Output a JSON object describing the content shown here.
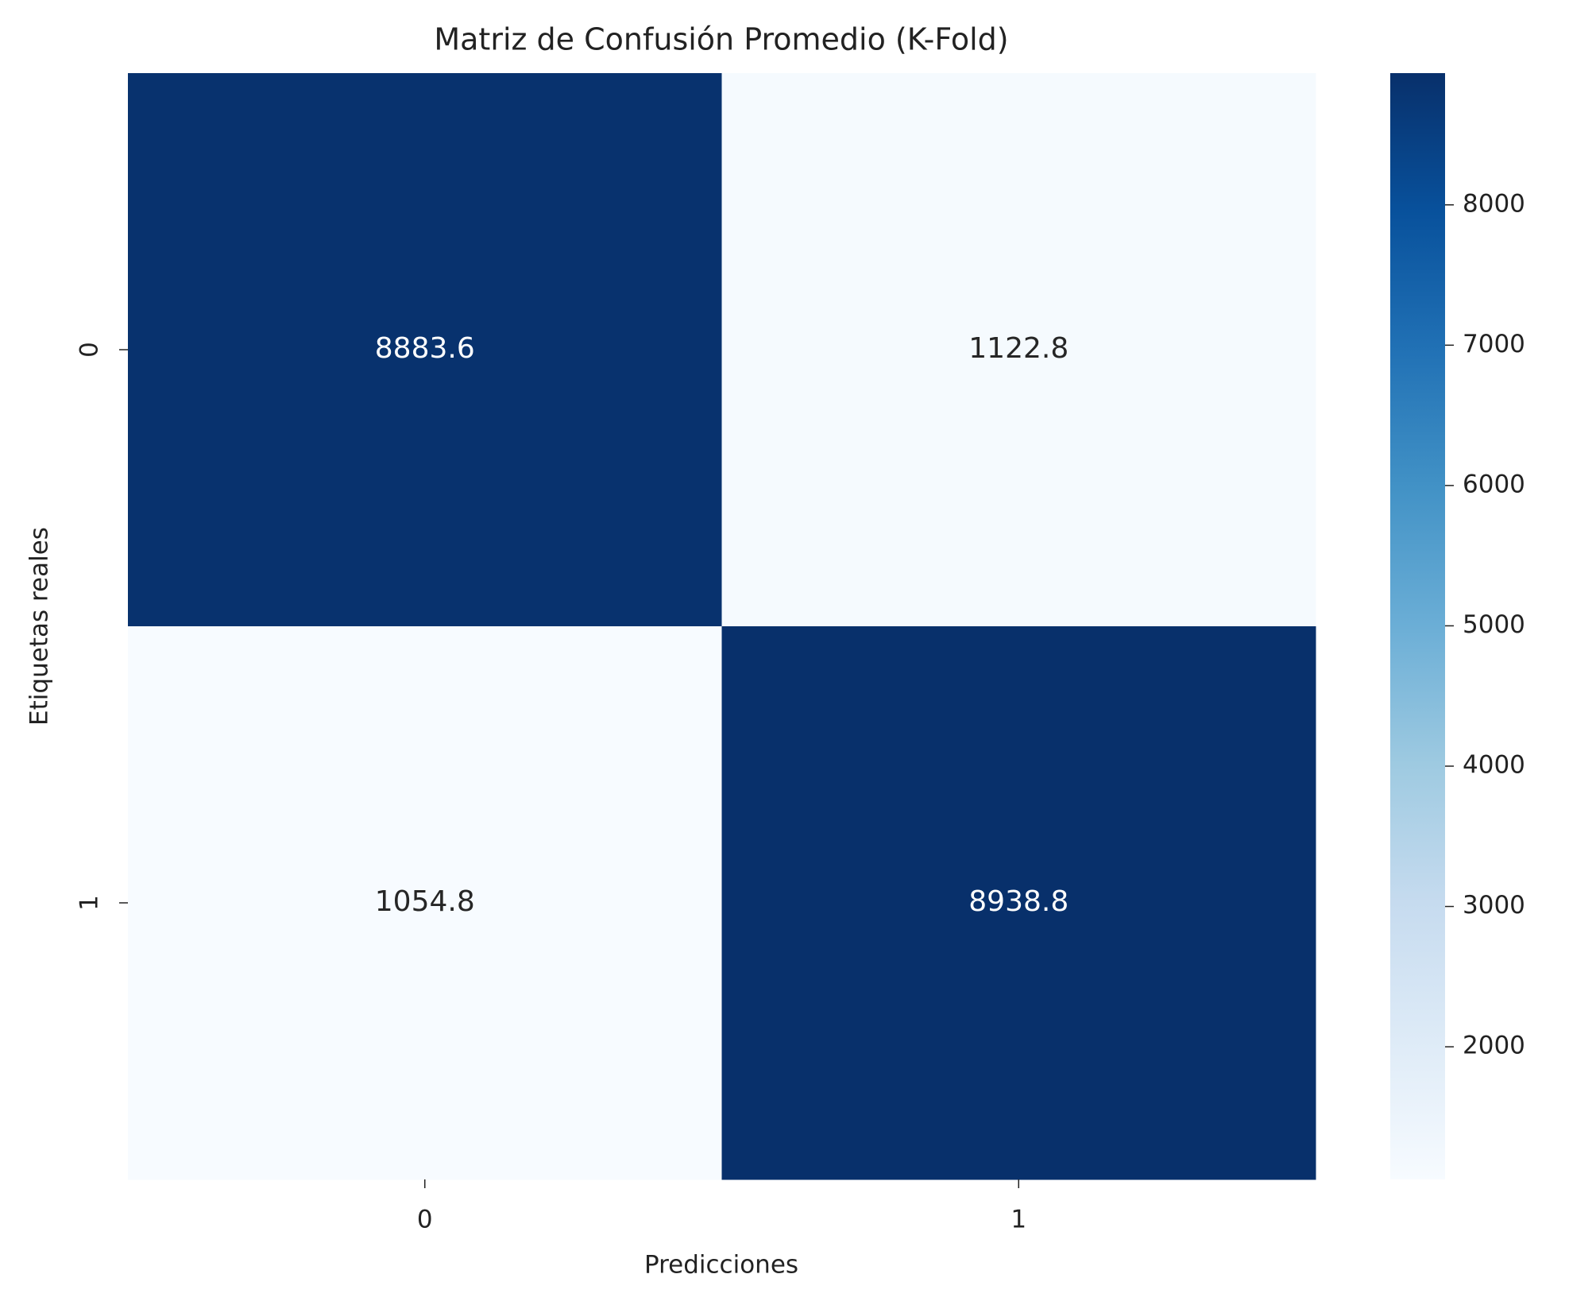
{
  "chart_data": {
    "type": "heatmap",
    "title": "Matriz de Confusión Promedio (K-Fold)",
    "xlabel": "Predicciones",
    "ylabel": "Etiquetas reales",
    "x_categories": [
      "0",
      "1"
    ],
    "y_categories": [
      "0",
      "1"
    ],
    "values": [
      [
        8883.6,
        1122.8
      ],
      [
        1054.8,
        8938.8
      ]
    ],
    "clim": [
      1054.8,
      8938.8
    ],
    "cticks": [
      2000,
      3000,
      4000,
      5000,
      6000,
      7000,
      8000
    ],
    "colormap": [
      "#f7fbff",
      "#deebf7",
      "#c6dbef",
      "#9ecae1",
      "#6baed6",
      "#4292c6",
      "#2171b5",
      "#08519c",
      "#08306b"
    ]
  }
}
